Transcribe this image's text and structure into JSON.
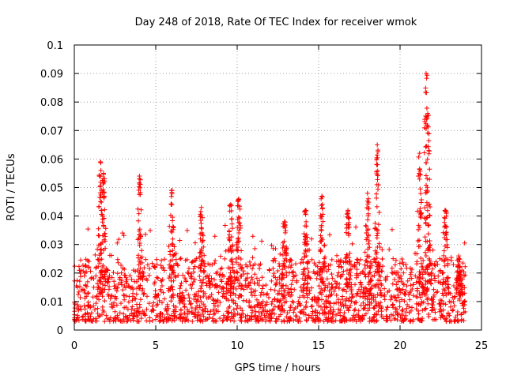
{
  "chart_data": {
    "type": "scatter",
    "title": "Day 248 of 2018, Rate Of TEC Index for receiver wmok",
    "xlabel": "GPS time / hours",
    "ylabel": "ROTI / TECUs",
    "xlim": [
      0,
      25
    ],
    "ylim": [
      0,
      0.1
    ],
    "x_ticks": [
      0,
      5,
      10,
      15,
      20,
      25
    ],
    "y_ticks": [
      0,
      0.01,
      0.02,
      0.03,
      0.04,
      0.05,
      0.06,
      0.07,
      0.08,
      0.09,
      0.1
    ],
    "x_tick_labels": [
      "0",
      "5",
      "10",
      "15",
      "20",
      "25"
    ],
    "y_tick_labels": [
      "0",
      "0.01",
      "0.02",
      "0.03",
      "0.04",
      "0.05",
      "0.06",
      "0.07",
      "0.08",
      "0.09",
      "0.1"
    ],
    "grid": true,
    "legend": "none",
    "marker": "plus",
    "marker_color": "#ff0000",
    "x_data_range": [
      0,
      24
    ],
    "dense_band": [
      0.003,
      0.02
    ],
    "peaks": [
      {
        "x": 1.6,
        "y": 0.059
      },
      {
        "x": 1.8,
        "y": 0.055
      },
      {
        "x": 4.0,
        "y": 0.054
      },
      {
        "x": 6.0,
        "y": 0.049
      },
      {
        "x": 7.8,
        "y": 0.043
      },
      {
        "x": 9.6,
        "y": 0.044
      },
      {
        "x": 10.1,
        "y": 0.046
      },
      {
        "x": 12.9,
        "y": 0.038
      },
      {
        "x": 14.2,
        "y": 0.042
      },
      {
        "x": 15.2,
        "y": 0.047
      },
      {
        "x": 16.8,
        "y": 0.042
      },
      {
        "x": 18.0,
        "y": 0.048
      },
      {
        "x": 18.6,
        "y": 0.065
      },
      {
        "x": 21.2,
        "y": 0.062
      },
      {
        "x": 21.6,
        "y": 0.09
      },
      {
        "x": 21.7,
        "y": 0.076
      },
      {
        "x": 22.8,
        "y": 0.042
      },
      {
        "x": 23.6,
        "y": 0.026
      }
    ]
  }
}
